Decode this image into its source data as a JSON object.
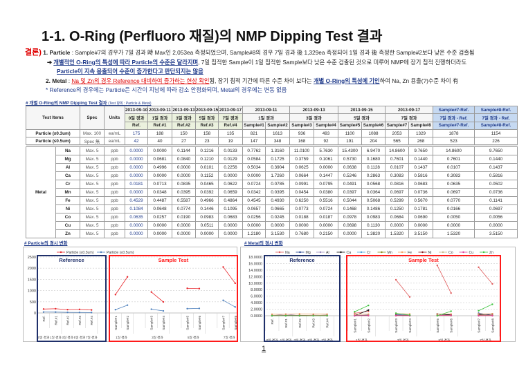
{
  "title": "1-1. O-Ring (Perfluoro 재질)의 NMP Dipping Test 결과",
  "conclusion": {
    "label": "결론)",
    "p1_head": "1. Particle",
    "p1_text": " : Sample#7의 경우가 7일 경과 時 Max인 2,053ea 측정되었으며, Sample#8의 경우 7일 경과 後 1,329ea 측정되어 1일 경과 後 측정한 Sample#2보다 낮은 수준 검출됨",
    "p1_arrow": "➔",
    "p1_emph": "개별적인 O-Ring의 특성에 따라 Particle의 수준은 달라지며",
    "p1_text2": ", 7일 침적한 Sample이 1일 침적한 Sample보다 낮은 수준 검출된 것으로 미루어 NMP에 장기 침적 진행하더라도",
    "p1_emph2": "Particle이 지속 용출되어 수준이 증가한다고 판단되지는 않음",
    "p2_head": "2. Metal",
    "p2_sep": " : ",
    "p2_emph_red": "Na 및 Zn의 경우 Reference 대비하여 증가하는 현상 확인",
    "p2_text": "됨, 장기 침적 기간에 따른 수준 차이 보다는 ",
    "p2_emph_blue": "개별 O-Ring의 특성에 기인",
    "p2_text2": "하여 Na, Zn 용출(?)수준 차이 有",
    "note": "* Reference의 경우에는 Particle은 시간이 지남에 따라 감소 안정화되며, Metal의 경우에는 변동 없음"
  },
  "table_caption": "# 개별 O-Ring의 NMP Dipping Test 결과",
  "table_caption_small": "(Test 항목 : Particle & Metal)",
  "table": {
    "h_test_items": "Test Items",
    "h_spec": "Spec",
    "h_units": "Units",
    "ref_dates": [
      "2013-09-10",
      "2013-09-11",
      "2013-09-13",
      "2013-09-15",
      "2013-09-17"
    ],
    "ref_days": [
      "0일 경과",
      "1일 경과",
      "3일 경과",
      "5일 경과",
      "7일 경과"
    ],
    "ref_names": [
      "Ref.",
      "Ref.#1",
      "Ref.#2",
      "Ref.#3",
      "Ref.#4"
    ],
    "sample_dates": [
      "2013-09-11",
      "2013-09-13",
      "2013-09-15",
      "2013-09-17"
    ],
    "sample_days": [
      "1일 경과",
      "3일 경과",
      "5일 경과",
      "7일 경과"
    ],
    "sample_names": [
      "Sample#1",
      "Sample#2",
      "Sample#3",
      "Sample#4",
      "Sample#5",
      "Sample#6",
      "Sample#7",
      "Sample#8"
    ],
    "diff_h1": [
      "Sample#7-Ref.",
      "Sample#8-Ref."
    ],
    "diff_h2": [
      "7일 경과 - Ref.",
      "7일 경과 - Ref."
    ],
    "diff_h3": [
      "Sample#7-Ref.",
      "Sample#8-Ref."
    ],
    "particle_rows": [
      {
        "item": "Particle (≤0.3um)",
        "spec": "Max.  100",
        "unit": "ea/mL",
        "values": [
          "175",
          "188",
          "150",
          "158",
          "135",
          "821",
          "1613",
          "936",
          "493",
          "1100",
          "1088",
          "2053",
          "1329",
          "1878",
          "1154"
        ]
      },
      {
        "item": "Particle (≤0.5um)",
        "spec": "Spec 無",
        "unit": "ea/mL",
        "values": [
          "42",
          "40",
          "27",
          "23",
          "19",
          "147",
          "348",
          "168",
          "92",
          "191",
          "204",
          "565",
          "268",
          "523",
          "226"
        ]
      }
    ],
    "metal_label": "Metal",
    "metal_rows": [
      {
        "item": "Na",
        "spec": "Max.  5",
        "unit": "ppb",
        "values": [
          "0.0000",
          "0.0000",
          "0.1144",
          "0.1216",
          "0.0133",
          "0.7762",
          "1.3160",
          "11.0100",
          "5.7630",
          "15.4300",
          "6.9470",
          "14.8600",
          "9.7650",
          "14.8600",
          "9.7650"
        ]
      },
      {
        "item": "Mg",
        "spec": "Max.  5",
        "unit": "ppb",
        "values": [
          "0.0000",
          "0.0681",
          "0.0840",
          "0.1210",
          "0.0129",
          "0.0584",
          "0.1725",
          "0.3759",
          "0.1061",
          "0.5730",
          "0.1680",
          "0.7601",
          "0.1440",
          "0.7601",
          "0.1440"
        ]
      },
      {
        "item": "Al",
        "spec": "Max.  5",
        "unit": "ppb",
        "values": [
          "0.0000",
          "0.4996",
          "0.0000",
          "0.0101",
          "0.2256",
          "0.5034",
          "0.3904",
          "0.0625",
          "0.0000",
          "0.0638",
          "0.1128",
          "0.0107",
          "0.1437",
          "0.0107",
          "0.1437"
        ]
      },
      {
        "item": "Ca",
        "spec": "Max.  5",
        "unit": "ppb",
        "values": [
          "0.0000",
          "0.0000",
          "0.0000",
          "0.1152",
          "0.0000",
          "0.0000",
          "1.7260",
          "0.0664",
          "0.1447",
          "0.5246",
          "0.2863",
          "0.3083",
          "0.5816",
          "0.3083",
          "0.5816"
        ]
      },
      {
        "item": "Cr",
        "spec": "Max.  5",
        "unit": "ppb",
        "values": [
          "0.0181",
          "0.0713",
          "0.0835",
          "0.0465",
          "0.0622",
          "0.0724",
          "0.0785",
          "0.0991",
          "0.0795",
          "0.0491",
          "0.0568",
          "0.0816",
          "0.0683",
          "0.0635",
          "0.0502"
        ]
      },
      {
        "item": "Mn",
        "spec": "Max.  5",
        "unit": "ppb",
        "values": [
          "0.0000",
          "0.0348",
          "0.0395",
          "0.0392",
          "0.0659",
          "0.0342",
          "0.0395",
          "0.0454",
          "0.0380",
          "0.0397",
          "0.0364",
          "0.0697",
          "0.0736",
          "0.0697",
          "0.0736"
        ]
      },
      {
        "item": "Fe",
        "spec": "Max.  5",
        "unit": "ppb",
        "values": [
          "0.4529",
          "0.4487",
          "0.5587",
          "0.4966",
          "0.4864",
          "0.4545",
          "0.4930",
          "0.6250",
          "0.5516",
          "0.5044",
          "0.5068",
          "0.5299",
          "0.5670",
          "0.0770",
          "0.1141"
        ]
      },
      {
        "item": "Ni",
        "spec": "Max.  5",
        "unit": "ppb",
        "values": [
          "0.1084",
          "0.0648",
          "0.0774",
          "0.1446",
          "0.1095",
          "0.0657",
          "0.0665",
          "0.0773",
          "0.0724",
          "0.1468",
          "0.1486",
          "0.1250",
          "0.1781",
          "0.0166",
          "0.0697"
        ]
      },
      {
        "item": "Co",
        "spec": "Max.  5",
        "unit": "ppb",
        "values": [
          "0.0635",
          "0.0257",
          "0.0190",
          "0.0983",
          "0.0683",
          "0.0256",
          "0.0245",
          "0.0188",
          "0.0187",
          "0.0978",
          "0.0983",
          "0.0684",
          "0.0690",
          "0.0050",
          "0.0056"
        ]
      },
      {
        "item": "Cu",
        "spec": "Max.  5",
        "unit": "ppb",
        "values": [
          "0.0000",
          "0.0000",
          "0.0000",
          "0.0511",
          "0.0000",
          "0.0000",
          "0.0000",
          "0.0000",
          "0.0000",
          "0.0698",
          "0.1130",
          "0.0000",
          "0.0000",
          "0.0000",
          "0.0000"
        ]
      },
      {
        "item": "Zn",
        "spec": "Max.  5",
        "unit": "ppb",
        "values": [
          "0.0000",
          "0.0000",
          "0.0000",
          "0.0000",
          "0.0000",
          "1.2180",
          "3.1530",
          "0.7680",
          "0.2150",
          "0.0000",
          "1.3820",
          "1.5320",
          "3.5150",
          "1.5320",
          "3.5150"
        ]
      }
    ]
  },
  "particle_chart_caption": "# Particle의 경시 변화",
  "metal_chart_caption": "# Metal의 경시 변화",
  "chart_data": [
    {
      "type": "line",
      "categories": [
        "Ref.",
        "Ref.#1",
        "Ref.#2",
        "Ref.#3",
        "Ref.#4",
        "Sample#1",
        "Sample#2",
        "Sample#3",
        "Sample#4",
        "Sample#5",
        "Sample#6",
        "Sample#7",
        "Sample#8"
      ],
      "ref_groups": [
        "0일 경과",
        "1일 경과",
        "3일 경과",
        "5일 경과",
        "7일 경과"
      ],
      "sample_groups": [
        "1일 경과",
        "3일 경과",
        "5일 경과",
        "7일 경과"
      ],
      "box_labels": {
        "reference": "Reference",
        "sample": "Sample Test"
      },
      "ylim": [
        0,
        2500
      ],
      "yticks": [
        "0",
        "500",
        "1000",
        "1500",
        "2000",
        "2500"
      ],
      "ytick_values": [
        0,
        500,
        1000,
        1500,
        2000,
        2500
      ],
      "grid": true,
      "legend": "top",
      "series": [
        {
          "name": "Particle (≤0.3um)",
          "color": "#e8262b",
          "values": [
            175,
            188,
            150,
            158,
            135,
            821,
            1613,
            936,
            493,
            1100,
            1088,
            2053,
            1329
          ]
        },
        {
          "name": "Particle (≤0.5um)",
          "color": "#4f81bd",
          "values": [
            42,
            40,
            27,
            23,
            19,
            147,
            348,
            168,
            92,
            191,
            204,
            565,
            268
          ]
        }
      ]
    },
    {
      "type": "line",
      "categories": [
        "Ref.",
        "Ref.#1",
        "Ref.#2",
        "Ref.#3",
        "Ref.#4",
        "Sample#1",
        "Sample#2",
        "Sample#3",
        "Sample#4",
        "Sample#5",
        "Sample#6",
        "Sample#7",
        "Sample#8"
      ],
      "ref_groups": [
        "0일 경과",
        "1일 경과",
        "3일 경과",
        "5일 경과",
        "7일 경과"
      ],
      "sample_groups": [
        "1일 경과",
        "3일 경과",
        "5일 경과",
        "7일 경과"
      ],
      "box_labels": {
        "reference": "Reference",
        "sample": "Sample Test"
      },
      "ylim": [
        0,
        18
      ],
      "yticks": [
        "0.0000",
        "2.0000",
        "4.0000",
        "6.0000",
        "8.0000",
        "10.0000",
        "12.0000",
        "14.0000",
        "16.0000",
        "18.0000"
      ],
      "ytick_values": [
        0,
        2,
        4,
        6,
        8,
        10,
        12,
        14,
        16,
        18
      ],
      "grid": true,
      "legend": "top",
      "series": [
        {
          "name": "Na",
          "color": "#e05a5a",
          "values": [
            0.0,
            0.0,
            0.1144,
            0.1216,
            0.0133,
            0.7762,
            1.316,
            11.01,
            5.763,
            15.43,
            6.947,
            14.86,
            9.765
          ]
        },
        {
          "name": "Mg",
          "color": "#1f3f8f",
          "values": [
            0.0,
            0.0681,
            0.084,
            0.121,
            0.0129,
            0.0584,
            0.1725,
            0.3759,
            0.1061,
            0.573,
            0.168,
            0.7601,
            0.144
          ]
        },
        {
          "name": "Al",
          "color": "#9b8cbf",
          "values": [
            0.0,
            0.4996,
            0.0,
            0.0101,
            0.2256,
            0.5034,
            0.3904,
            0.0625,
            0.0,
            0.0638,
            0.1128,
            0.0107,
            0.1437
          ]
        },
        {
          "name": "Ca",
          "color": "#111111",
          "values": [
            0.0,
            0.0,
            0.0,
            0.1152,
            0.0,
            0.0,
            1.726,
            0.0664,
            0.1447,
            0.5246,
            0.2863,
            0.3083,
            0.5816
          ]
        },
        {
          "name": "Cr",
          "color": "#4aa3d8",
          "values": [
            0.0181,
            0.0713,
            0.0835,
            0.0465,
            0.0622,
            0.0724,
            0.0785,
            0.0991,
            0.0795,
            0.0491,
            0.0568,
            0.0816,
            0.0683
          ]
        },
        {
          "name": "Mn",
          "color": "#8a8a1a",
          "values": [
            0.0,
            0.0348,
            0.0395,
            0.0392,
            0.0659,
            0.0342,
            0.0395,
            0.0454,
            0.038,
            0.0397,
            0.0364,
            0.0697,
            0.0736
          ]
        },
        {
          "name": "Fe",
          "color": "#f2a060",
          "values": [
            0.4529,
            0.4487,
            0.5587,
            0.4966,
            0.4864,
            0.4545,
            0.493,
            0.625,
            0.5516,
            0.5044,
            0.5068,
            0.5299,
            0.567
          ]
        },
        {
          "name": "Ni",
          "color": "#8b2020",
          "values": [
            0.1084,
            0.0648,
            0.0774,
            0.1446,
            0.1095,
            0.0657,
            0.0665,
            0.0773,
            0.0724,
            0.1468,
            0.1486,
            0.125,
            0.1781
          ]
        },
        {
          "name": "Co",
          "color": "#c8b88a",
          "values": [
            0.0635,
            0.0257,
            0.019,
            0.0983,
            0.0683,
            0.0256,
            0.0245,
            0.0188,
            0.0187,
            0.0978,
            0.0983,
            0.0684,
            0.069
          ]
        },
        {
          "name": "Cu",
          "color": "#e0409a",
          "values": [
            0.0,
            0.0,
            0.0,
            0.0511,
            0.0,
            0.0,
            0.0,
            0.0,
            0.0,
            0.0698,
            0.113,
            0.0,
            0.0
          ]
        },
        {
          "name": "Zn",
          "color": "#3ec43e",
          "values": [
            0.0,
            0.0,
            0.0,
            0.0,
            0.0,
            1.218,
            3.153,
            0.768,
            0.215,
            0.0,
            1.382,
            1.532,
            3.515
          ]
        }
      ]
    }
  ],
  "page_number": "1"
}
